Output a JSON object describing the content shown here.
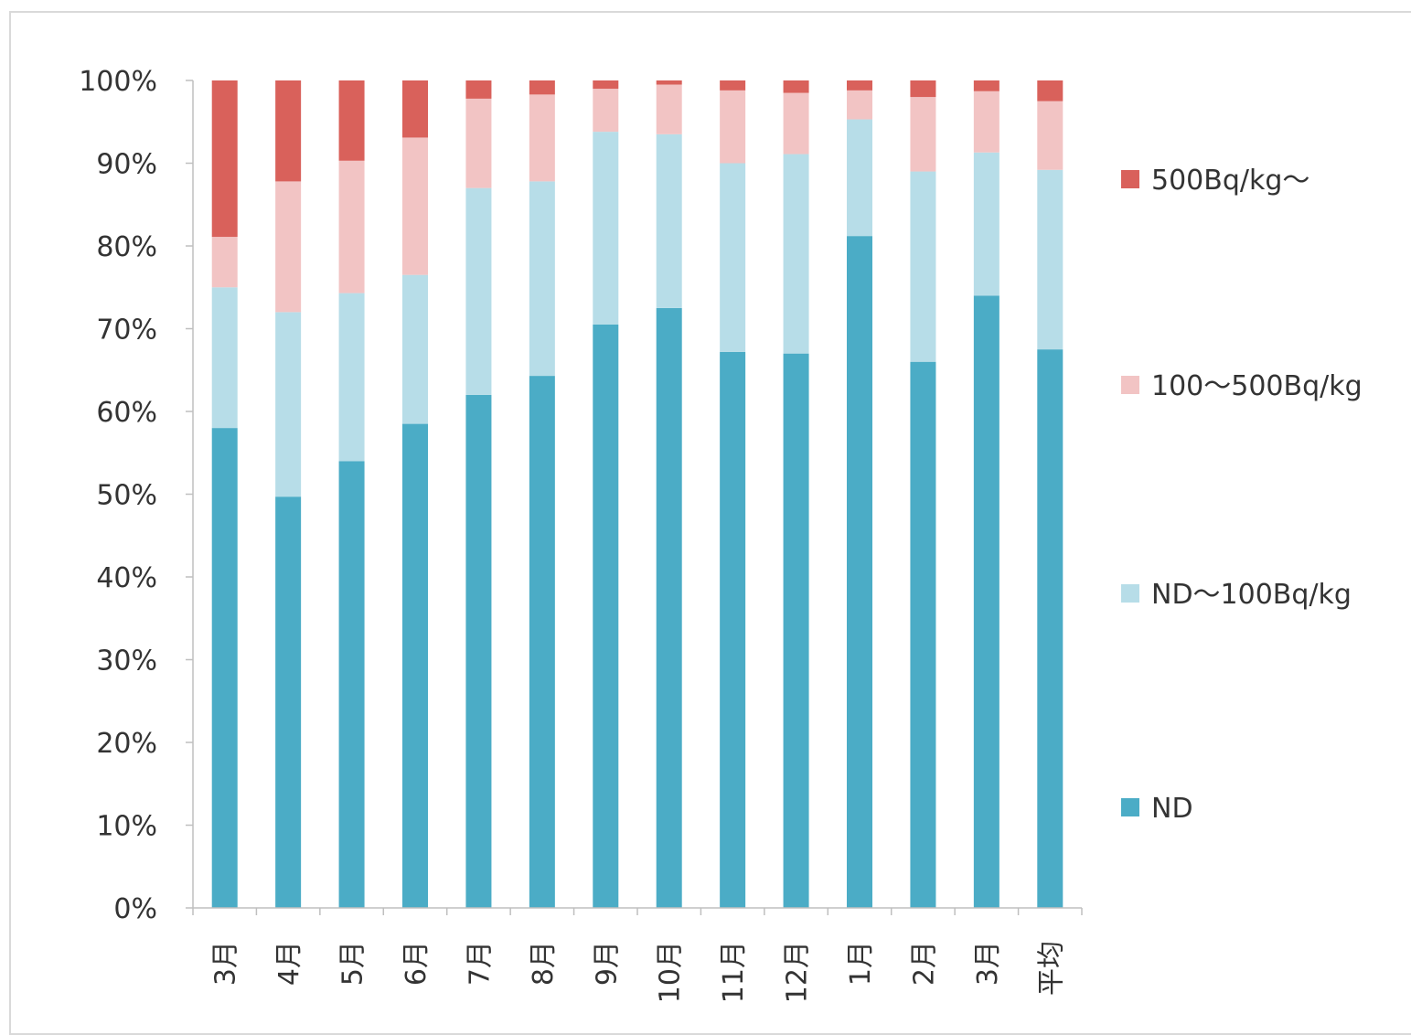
{
  "chart_data": {
    "type": "bar",
    "stacked": true,
    "percent": true,
    "categories": [
      "3月",
      "4月",
      "5月",
      "6月",
      "7月",
      "8月",
      "9月",
      "10月",
      "11月",
      "12月",
      "1月",
      "2月",
      "3月",
      "平均"
    ],
    "series": [
      {
        "name": "ND",
        "color": "#4bacc6",
        "values": [
          58,
          49.7,
          54,
          58.5,
          62,
          64.3,
          70.5,
          72.5,
          67.2,
          67,
          81.2,
          66,
          74,
          67.5
        ]
      },
      {
        "name": "ND〜100Bq/kg",
        "color": "#b7dde8",
        "values": [
          17,
          22.3,
          20.3,
          18,
          25,
          23.5,
          23.3,
          21,
          22.8,
          24.1,
          14.1,
          23,
          17.3,
          21.7
        ]
      },
      {
        "name": "100〜500Bq/kg",
        "color": "#f2c4c4",
        "values": [
          6.1,
          15.8,
          16,
          16.6,
          10.8,
          10.5,
          5.2,
          6,
          8.8,
          7.4,
          3.5,
          9,
          7.4,
          8.3
        ]
      },
      {
        "name": "500Bq/kg〜",
        "color": "#d9615b",
        "values": [
          18.9,
          12.2,
          9.7,
          6.9,
          2.2,
          1.7,
          1,
          0.5,
          1.2,
          1.5,
          1.2,
          2,
          1.3,
          2.5
        ]
      }
    ],
    "y_ticks": [
      "0%",
      "10%",
      "20%",
      "30%",
      "40%",
      "50%",
      "60%",
      "70%",
      "80%",
      "90%",
      "100%"
    ],
    "ylim": [
      0,
      100
    ],
    "legend_position": "right",
    "legend_order": [
      "500Bq/kg〜",
      "100〜500Bq/kg",
      "ND〜100Bq/kg",
      "ND"
    ],
    "grid": false,
    "title": "",
    "xlabel": "",
    "ylabel": ""
  }
}
